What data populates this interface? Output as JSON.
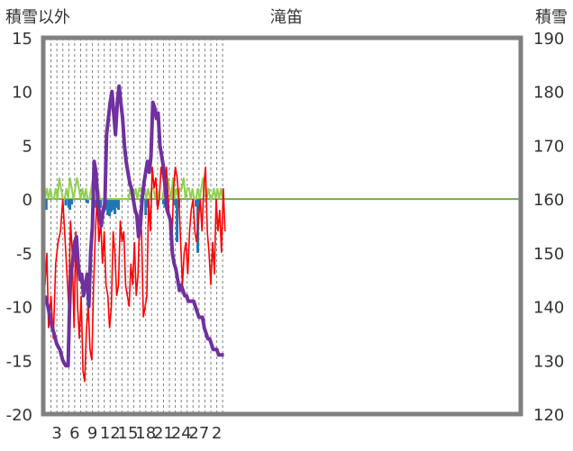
{
  "chart_data": {
    "type": "line",
    "title": "滝笛",
    "ylabel_left": "積雪以外",
    "ylabel_right": "積雪",
    "ylim_left": [
      -20,
      15
    ],
    "ylim_right": [
      120,
      190
    ],
    "yticks_left": [
      "15",
      "10",
      "5",
      "0",
      "-5",
      "-10",
      "-15",
      "-20"
    ],
    "yticks_right": [
      "190",
      "180",
      "170",
      "160",
      "150",
      "140",
      "130",
      "120"
    ],
    "x_range": [
      0,
      50
    ],
    "xticks": [
      {
        "x": 2,
        "label": "3"
      },
      {
        "x": 5,
        "label": "6"
      },
      {
        "x": 8,
        "label": "9"
      },
      {
        "x": 11,
        "label": "12"
      },
      {
        "x": 14,
        "label": "15"
      },
      {
        "x": 17,
        "label": "18"
      },
      {
        "x": 20,
        "label": "21"
      },
      {
        "x": 23,
        "label": "24"
      },
      {
        "x": 26,
        "label": "27"
      },
      {
        "x": 29,
        "label": "2"
      }
    ],
    "colors": {
      "temperature": "#ff0000",
      "wind": "#92d050",
      "precipitation": "#1f77b4",
      "snow_depth": "#7030a0",
      "zero_line": "#70ad47",
      "frame": "#808080"
    },
    "series": [
      {
        "key": "temperature",
        "axis": "left",
        "x": [
          0,
          0.3,
          0.6,
          1.0,
          1.4,
          1.8,
          2.2,
          2.6,
          3.0,
          3.3,
          3.6,
          4.0,
          4.3,
          4.6,
          4.9,
          5.2,
          5.5,
          5.8,
          6.1,
          6.4,
          6.7,
          7.0,
          7.3,
          7.6,
          7.9,
          8.2,
          8.5,
          8.8,
          9.1,
          9.4,
          9.7,
          10.0,
          10.3,
          10.6,
          10.9,
          11.2,
          11.5,
          11.8,
          12.1,
          12.4,
          12.7,
          13.0,
          13.3,
          13.6,
          13.9,
          14.2,
          14.5,
          14.8,
          15.1,
          15.4,
          15.7,
          16.0,
          16.3,
          16.6,
          16.9,
          17.2,
          17.5,
          17.8,
          18.1,
          18.4,
          18.7,
          19.0,
          19.3,
          19.6,
          19.9,
          20.2,
          20.5,
          20.8,
          21.1,
          21.4,
          21.7,
          22.0,
          22.3,
          22.6,
          22.9,
          23.2,
          23.5,
          23.8,
          24.1,
          24.4,
          24.7,
          25.0,
          25.3,
          25.6,
          25.9,
          26.2,
          26.5,
          26.8,
          27.1,
          27.4,
          27.7,
          28.0,
          28.3,
          28.6,
          28.9,
          29.2,
          29.5,
          29.8,
          30.1,
          30.4
        ],
        "values": [
          -8,
          -5,
          -12,
          -9,
          -13,
          -6,
          -4,
          -3,
          0,
          -3,
          -6,
          -10,
          -2,
          -5,
          -12,
          -3,
          -10,
          -13,
          -9,
          -16,
          -17,
          -12,
          -10,
          -14,
          -15,
          -8,
          -3,
          0,
          -4,
          -2,
          -6,
          -3,
          -8,
          -9,
          -12,
          -10,
          -3,
          -5,
          -9,
          -8,
          -2,
          -4,
          -3,
          -8,
          -9,
          -10,
          -6,
          -8,
          -4,
          -9,
          -7,
          -1,
          -3,
          -11,
          -10,
          -9,
          0,
          -3,
          3,
          1,
          2,
          -1,
          0,
          3,
          2,
          1,
          3,
          0,
          -3,
          -5,
          1,
          3,
          2,
          0,
          -4,
          -8,
          -5,
          -4,
          -7,
          -3,
          -1,
          0,
          -3,
          -4,
          -2,
          0,
          -3,
          1,
          3,
          -3,
          -5,
          -8,
          -4,
          -7,
          0,
          -3,
          -1,
          -5,
          1,
          -3
        ]
      },
      {
        "key": "wind",
        "axis": "left",
        "x": [
          0,
          0.3,
          0.6,
          0.9,
          1.2,
          1.5,
          1.8,
          2.1,
          2.4,
          2.7,
          3.0,
          3.3,
          3.6,
          3.9,
          4.2,
          4.5,
          4.8,
          5.1,
          5.4,
          5.7,
          6.0,
          6.3,
          6.6,
          6.9,
          7.2,
          7.5,
          7.8,
          8.1,
          8.4,
          8.7,
          9.0,
          9.3,
          9.6,
          9.9,
          10.2,
          10.5,
          10.8,
          11.1,
          11.4,
          11.7,
          12.0,
          12.3,
          12.6,
          12.9,
          13.2,
          13.5,
          13.8,
          14.1,
          14.4,
          14.7,
          15.0,
          15.3,
          15.6,
          15.9,
          16.2,
          16.5,
          16.8,
          17.1,
          17.4,
          17.7,
          18.0,
          18.3,
          18.6,
          18.9,
          19.2,
          19.5,
          19.8,
          20.1,
          20.4,
          20.7,
          21.0,
          21.3,
          21.6,
          21.9,
          22.2,
          22.5,
          22.8,
          23.1,
          23.4,
          23.7,
          24.0,
          24.3,
          24.6,
          24.9,
          25.2,
          25.5,
          25.8,
          26.1,
          26.4,
          26.7,
          27.0,
          27.3,
          27.6,
          27.9,
          28.2,
          28.5,
          28.8,
          29.1,
          29.4,
          29.7,
          30.0,
          30.3
        ],
        "values": [
          0,
          1,
          0,
          1,
          0,
          0,
          1,
          0,
          2,
          1,
          0,
          0,
          1,
          0,
          2,
          1,
          0,
          1,
          2,
          1,
          0,
          1,
          0,
          1,
          0,
          0,
          1,
          2,
          0,
          0,
          1,
          0,
          0,
          0,
          0,
          0,
          0,
          0,
          0,
          0,
          0,
          0,
          0,
          0,
          0,
          0,
          0,
          0,
          1,
          0,
          0,
          1,
          0,
          1,
          1,
          0,
          1,
          0,
          1,
          0,
          1,
          1,
          0,
          1,
          0,
          0,
          0,
          1,
          0,
          2,
          1,
          0,
          2,
          0,
          1,
          0,
          1,
          1,
          2,
          0,
          1,
          1,
          0,
          1,
          0,
          0,
          1,
          0,
          1,
          2,
          1,
          0,
          1,
          0,
          0,
          1,
          0,
          1,
          0,
          1,
          0,
          0
        ]
      },
      {
        "key": "precipitation",
        "axis": "left",
        "x": [
          0.0,
          0.2,
          3.5,
          4.0,
          4.2,
          4.5,
          7.0,
          7.2,
          8.2,
          8.5,
          8.8,
          9.1,
          9.4,
          10.0,
          10.3,
          10.6,
          10.9,
          11.2,
          11.5,
          11.8,
          12.1,
          12.4,
          17.0,
          17.3,
          19.0,
          20.0,
          20.3,
          22.0,
          22.3,
          22.6,
          25.5,
          25.8
        ],
        "values": [
          -0.8,
          -1.0,
          -0.6,
          -0.8,
          -1.0,
          -0.5,
          -0.3,
          -0.4,
          -0.6,
          -0.8,
          -0.9,
          -1.0,
          -0.8,
          -1.2,
          -1.0,
          -1.5,
          -1.6,
          -1.2,
          -1.0,
          -1.4,
          -0.8,
          -1.0,
          -1.5,
          -0.8,
          -0.6,
          -0.5,
          -0.8,
          -0.6,
          -4.0,
          -0.8,
          -0.7,
          -5.0
        ]
      },
      {
        "key": "snow_depth",
        "axis": "right",
        "x": [
          0,
          0.5,
          1.0,
          1.5,
          2.0,
          2.5,
          3.0,
          3.5,
          3.9,
          4.1,
          4.3,
          4.5,
          4.8,
          5.0,
          5.3,
          5.6,
          5.9,
          6.2,
          6.5,
          6.8,
          7.1,
          7.4,
          7.7,
          8.0,
          8.3,
          8.6,
          8.9,
          9.2,
          9.5,
          9.8,
          10.1,
          10.4,
          10.7,
          11.0,
          11.3,
          11.6,
          11.9,
          12.2,
          12.5,
          12.8,
          13.1,
          13.4,
          13.7,
          14.0,
          14.3,
          14.6,
          14.9,
          15.2,
          15.5,
          15.8,
          16.1,
          16.4,
          16.7,
          17.0,
          17.3,
          17.6,
          17.9,
          18.2,
          18.5,
          18.8,
          19.1,
          19.4,
          19.7,
          20.0,
          20.3,
          20.6,
          20.9,
          21.2,
          21.5,
          21.8,
          22.1,
          22.4,
          22.7,
          23.0,
          23.3,
          23.6,
          23.9,
          24.2,
          24.5,
          24.8,
          25.1,
          25.4,
          25.7,
          26.0,
          26.3,
          26.6,
          26.9,
          27.2,
          27.5,
          27.8,
          28.1,
          28.4,
          28.7,
          29.0,
          29.3,
          29.6,
          29.9,
          30.2
        ],
        "values": [
          142,
          140,
          137,
          135,
          133,
          132,
          130,
          129,
          129,
          138,
          145,
          147,
          150,
          152,
          153,
          148,
          145,
          146,
          142,
          144,
          146,
          140,
          150,
          155,
          167,
          165,
          160,
          157,
          155,
          158,
          159,
          172,
          175,
          178,
          180,
          176,
          172,
          178,
          181,
          178,
          175,
          170,
          167,
          165,
          163,
          162,
          160,
          158,
          157,
          153,
          155,
          160,
          163,
          165,
          167,
          165,
          168,
          178,
          177,
          175,
          176,
          170,
          168,
          166,
          162,
          158,
          157,
          156,
          150,
          148,
          147,
          145,
          143,
          144,
          143,
          142,
          142,
          141,
          141,
          141,
          141,
          140,
          139,
          138,
          138,
          138,
          136,
          135,
          134,
          134,
          133,
          132,
          132,
          132,
          131,
          131,
          131,
          131
        ]
      }
    ]
  }
}
